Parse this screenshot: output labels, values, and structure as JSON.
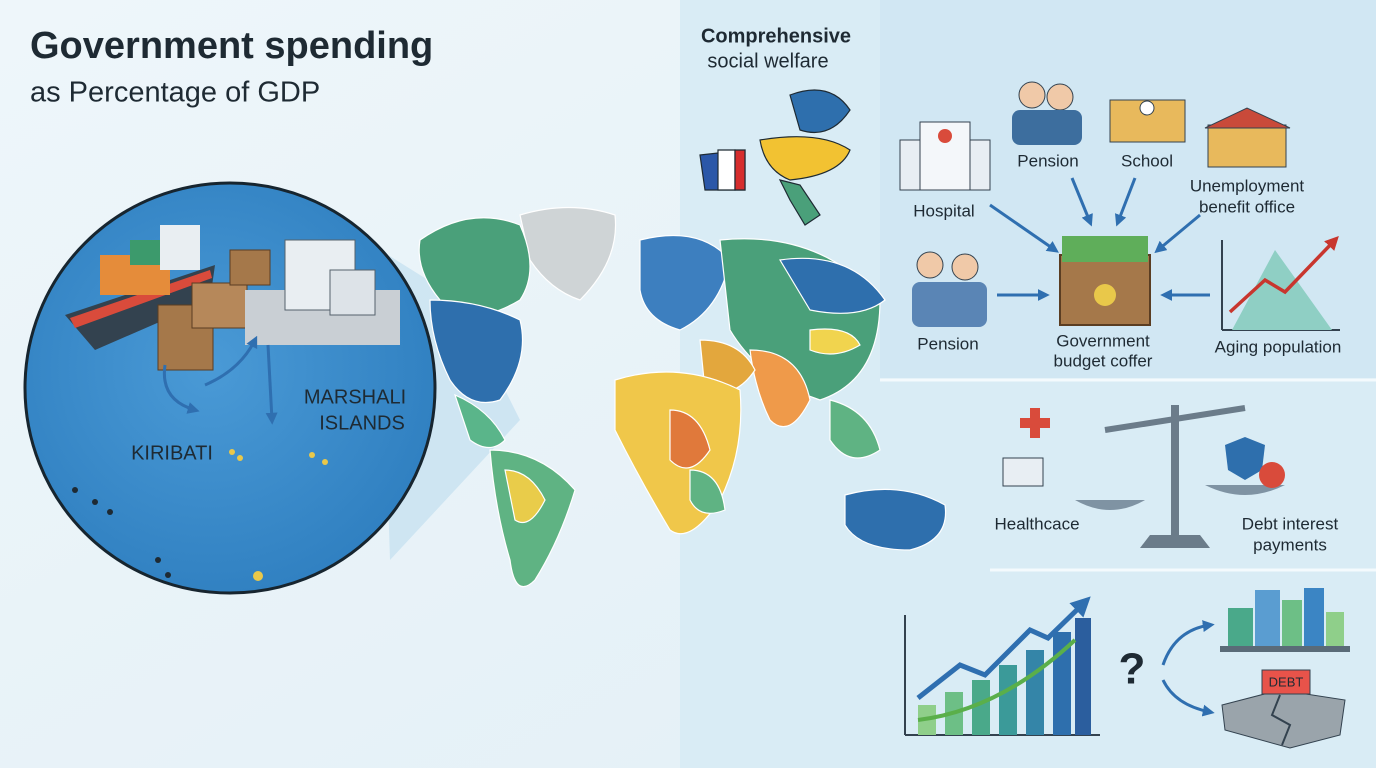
{
  "header": {
    "title": "Government spending",
    "subtitle": "as Percentage of GDP"
  },
  "inset": {
    "labels": [
      {
        "lines": [
          "MARSHALI",
          "ISLANDS"
        ]
      },
      {
        "lines": [
          "KIRIBATI"
        ]
      }
    ]
  },
  "welfare": {
    "lines": [
      "Comprehensive",
      "social welfare"
    ]
  },
  "budget_flow": {
    "nodes": [
      {
        "lines": [
          "Hospital"
        ]
      },
      {
        "lines": [
          "Pension"
        ]
      },
      {
        "lines": [
          "School"
        ]
      },
      {
        "lines": [
          "Unemployment",
          "benefit office"
        ]
      },
      {
        "lines": [
          "Pension"
        ]
      },
      {
        "lines": [
          "Government",
          "budget coffer"
        ]
      },
      {
        "lines": [
          "Aging population"
        ]
      }
    ]
  },
  "balance": {
    "left": {
      "lines": [
        "Healthcace"
      ]
    },
    "right": {
      "lines": [
        "Debt interest",
        "payments"
      ]
    }
  },
  "outlook": {
    "question": "?",
    "sign": "DEBT"
  }
}
